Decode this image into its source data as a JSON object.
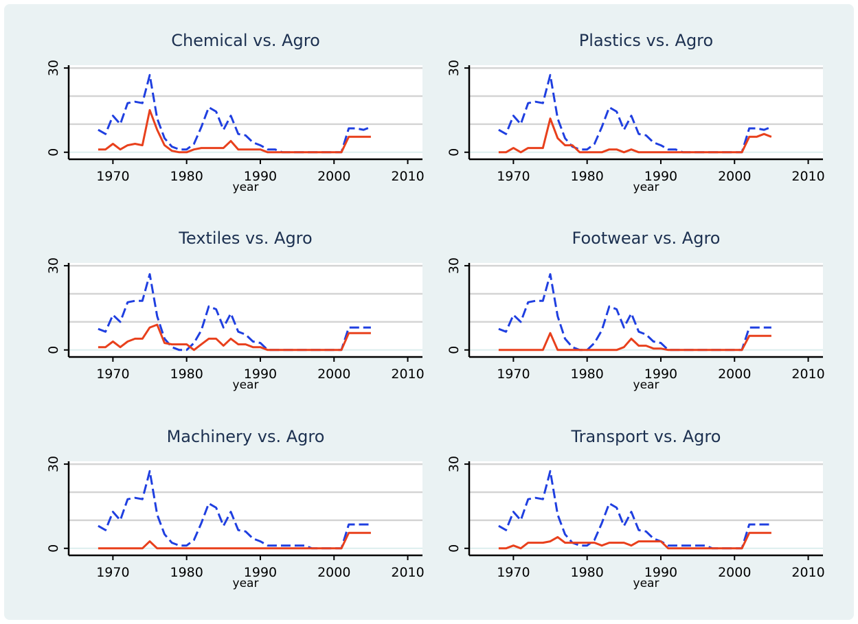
{
  "chart_data": [
    {
      "type": "line",
      "title": "Chemical vs. Agro",
      "xlabel": "year",
      "x": [
        1968,
        1969,
        1970,
        1971,
        1972,
        1973,
        1974,
        1975,
        1976,
        1977,
        1978,
        1979,
        1980,
        1981,
        1982,
        1983,
        1984,
        1985,
        1986,
        1987,
        1988,
        1989,
        1990,
        1991,
        1992,
        1993,
        1994,
        1995,
        1996,
        1997,
        1998,
        1999,
        2000,
        2001,
        2002,
        2003,
        2004,
        2005
      ],
      "series": [
        {
          "color": "#1f3fe0",
          "style": "dashed",
          "values": [
            8,
            6.5,
            13,
            10,
            17.5,
            18,
            17.5,
            27.5,
            12,
            5,
            2,
            1,
            1,
            3,
            9,
            16,
            14.5,
            8,
            13,
            6.5,
            6,
            3.5,
            2.5,
            1,
            1,
            0,
            0,
            0,
            0,
            0,
            0,
            0,
            0,
            0,
            8.5,
            8.5,
            8,
            9
          ]
        },
        {
          "color": "#e8401c",
          "style": "solid",
          "values": [
            1,
            1,
            3,
            1,
            2.5,
            3,
            2.5,
            15,
            8,
            2.5,
            0.5,
            0,
            0,
            1,
            1.5,
            1.5,
            1.5,
            1.5,
            4,
            1,
            1,
            1,
            1,
            0,
            0,
            0,
            0,
            0,
            0,
            0,
            0,
            0,
            0,
            0,
            5.5,
            5.5,
            5.5,
            5.5
          ]
        }
      ],
      "xlim": [
        1964,
        2012
      ],
      "xticks": [
        1970,
        1980,
        1990,
        2000,
        2010
      ],
      "ylim": [
        -2.5,
        31
      ],
      "yticks": [
        0,
        30
      ],
      "ygrid": [
        10,
        20,
        30
      ]
    },
    {
      "type": "line",
      "title": "Plastics vs. Agro",
      "xlabel": "year",
      "x": [
        1968,
        1969,
        1970,
        1971,
        1972,
        1973,
        1974,
        1975,
        1976,
        1977,
        1978,
        1979,
        1980,
        1981,
        1982,
        1983,
        1984,
        1985,
        1986,
        1987,
        1988,
        1989,
        1990,
        1991,
        1992,
        1993,
        1994,
        1995,
        1996,
        1997,
        1998,
        1999,
        2000,
        2001,
        2002,
        2003,
        2004,
        2005
      ],
      "series": [
        {
          "color": "#1f3fe0",
          "style": "dashed",
          "values": [
            8,
            6.5,
            13,
            10,
            17.5,
            18,
            17.5,
            27.5,
            12,
            5,
            2,
            1,
            1,
            3,
            9,
            16,
            14.5,
            8,
            13,
            6.5,
            6,
            3.5,
            2.5,
            1,
            1,
            0,
            0,
            0,
            0,
            0,
            0,
            0,
            0,
            0,
            8.5,
            8.5,
            8,
            9
          ]
        },
        {
          "color": "#e8401c",
          "style": "solid",
          "values": [
            0,
            0,
            1.5,
            0,
            1.5,
            1.5,
            1.5,
            12,
            5,
            2.5,
            2.5,
            0,
            0,
            0,
            0,
            1,
            1,
            0,
            1,
            0,
            0,
            0,
            0,
            0,
            0,
            0,
            0,
            0,
            0,
            0,
            0,
            0,
            0,
            0,
            5.5,
            5.5,
            6.5,
            5.5
          ]
        }
      ],
      "xlim": [
        1964,
        2012
      ],
      "xticks": [
        1970,
        1980,
        1990,
        2000,
        2010
      ],
      "ylim": [
        -2.5,
        31
      ],
      "yticks": [
        0,
        30
      ],
      "ygrid": [
        10,
        20,
        30
      ]
    },
    {
      "type": "line",
      "title": "Textiles vs. Agro",
      "xlabel": "year",
      "x": [
        1968,
        1969,
        1970,
        1971,
        1972,
        1973,
        1974,
        1975,
        1976,
        1977,
        1978,
        1979,
        1980,
        1981,
        1982,
        1983,
        1984,
        1985,
        1986,
        1987,
        1988,
        1989,
        1990,
        1991,
        1992,
        1993,
        1994,
        1995,
        1996,
        1997,
        1998,
        1999,
        2000,
        2001,
        2002,
        2003,
        2004,
        2005
      ],
      "series": [
        {
          "color": "#1f3fe0",
          "style": "dashed",
          "values": [
            7.5,
            6.5,
            12.5,
            10,
            17,
            17.5,
            17.5,
            27,
            12,
            4,
            1,
            0,
            0,
            2.5,
            7,
            15.5,
            14.5,
            8,
            13,
            6.5,
            5.5,
            3,
            2.5,
            0,
            0,
            0,
            0,
            0,
            0,
            0,
            0,
            0,
            0,
            0,
            8,
            8,
            8,
            8
          ]
        },
        {
          "color": "#e8401c",
          "style": "solid",
          "values": [
            1,
            1,
            3,
            1,
            3,
            4,
            4,
            8,
            9,
            2.5,
            2,
            2,
            2,
            0,
            2,
            4,
            4,
            1.5,
            4,
            2,
            2,
            1,
            1,
            0,
            0,
            0,
            0,
            0,
            0,
            0,
            0,
            0,
            0,
            0,
            6,
            6,
            6,
            6
          ]
        }
      ],
      "xlim": [
        1964,
        2012
      ],
      "xticks": [
        1970,
        1980,
        1990,
        2000,
        2010
      ],
      "ylim": [
        -2.5,
        31
      ],
      "yticks": [
        0,
        30
      ],
      "ygrid": [
        10,
        20,
        30
      ]
    },
    {
      "type": "line",
      "title": "Footwear vs. Agro",
      "xlabel": "year",
      "x": [
        1968,
        1969,
        1970,
        1971,
        1972,
        1973,
        1974,
        1975,
        1976,
        1977,
        1978,
        1979,
        1980,
        1981,
        1982,
        1983,
        1984,
        1985,
        1986,
        1987,
        1988,
        1989,
        1990,
        1991,
        1992,
        1993,
        1994,
        1995,
        1996,
        1997,
        1998,
        1999,
        2000,
        2001,
        2002,
        2003,
        2004,
        2005
      ],
      "series": [
        {
          "color": "#1f3fe0",
          "style": "dashed",
          "values": [
            7.5,
            6.5,
            12.5,
            10,
            17,
            17.5,
            17.5,
            27,
            12,
            4,
            1,
            0,
            0,
            2.5,
            7,
            15.5,
            14.5,
            8,
            13,
            6.5,
            5.5,
            3,
            2.5,
            0,
            0,
            0,
            0,
            0,
            0,
            0,
            0,
            0,
            0,
            0,
            8,
            8,
            8,
            8
          ]
        },
        {
          "color": "#e8401c",
          "style": "solid",
          "values": [
            0,
            0,
            0,
            0,
            0,
            0,
            0,
            6,
            0,
            0,
            0,
            0,
            0,
            0,
            0,
            0,
            0,
            1,
            4,
            1.5,
            1.5,
            0.5,
            0.5,
            0,
            0,
            0,
            0,
            0,
            0,
            0,
            0,
            0,
            0,
            0,
            5,
            5,
            5,
            5
          ]
        }
      ],
      "xlim": [
        1964,
        2012
      ],
      "xticks": [
        1970,
        1980,
        1990,
        2000,
        2010
      ],
      "ylim": [
        -2.5,
        31
      ],
      "yticks": [
        0,
        30
      ],
      "ygrid": [
        10,
        20,
        30
      ]
    },
    {
      "type": "line",
      "title": "Machinery vs. Agro",
      "xlabel": "year",
      "x": [
        1968,
        1969,
        1970,
        1971,
        1972,
        1973,
        1974,
        1975,
        1976,
        1977,
        1978,
        1979,
        1980,
        1981,
        1982,
        1983,
        1984,
        1985,
        1986,
        1987,
        1988,
        1989,
        1990,
        1991,
        1992,
        1993,
        1994,
        1995,
        1996,
        1997,
        1998,
        1999,
        2000,
        2001,
        2002,
        2003,
        2004,
        2005
      ],
      "series": [
        {
          "color": "#1f3fe0",
          "style": "dashed",
          "values": [
            8,
            6.5,
            13,
            10,
            17.5,
            18,
            17.5,
            27.5,
            12,
            5,
            2,
            1,
            1,
            3,
            9,
            16,
            14.5,
            8,
            13,
            6.5,
            6,
            3.5,
            2.5,
            1,
            1,
            1,
            1,
            1,
            1,
            0,
            0,
            0,
            0,
            0,
            8.5,
            8.5,
            8.5,
            8.5
          ]
        },
        {
          "color": "#e8401c",
          "style": "solid",
          "values": [
            0,
            0,
            0,
            0,
            0,
            0,
            0,
            2.5,
            0,
            0,
            0,
            0,
            0,
            0,
            0,
            0,
            0,
            0,
            0,
            0,
            0,
            0,
            0,
            0,
            0,
            0,
            0,
            0,
            0,
            0,
            0,
            0,
            0,
            0,
            5.5,
            5.5,
            5.5,
            5.5
          ]
        }
      ],
      "xlim": [
        1964,
        2012
      ],
      "xticks": [
        1970,
        1980,
        1990,
        2000,
        2010
      ],
      "ylim": [
        -2.5,
        31
      ],
      "yticks": [
        0,
        30
      ],
      "ygrid": [
        10,
        20,
        30
      ]
    },
    {
      "type": "line",
      "title": "Transport vs. Agro",
      "xlabel": "year",
      "x": [
        1968,
        1969,
        1970,
        1971,
        1972,
        1973,
        1974,
        1975,
        1976,
        1977,
        1978,
        1979,
        1980,
        1981,
        1982,
        1983,
        1984,
        1985,
        1986,
        1987,
        1988,
        1989,
        1990,
        1991,
        1992,
        1993,
        1994,
        1995,
        1996,
        1997,
        1998,
        1999,
        2000,
        2001,
        2002,
        2003,
        2004,
        2005
      ],
      "series": [
        {
          "color": "#1f3fe0",
          "style": "dashed",
          "values": [
            8,
            6.5,
            13,
            10,
            17.5,
            18,
            17.5,
            27.5,
            12,
            5,
            2,
            1,
            1,
            3,
            9,
            16,
            14.5,
            8,
            13,
            6.5,
            6,
            3.5,
            2.5,
            1,
            1,
            1,
            1,
            1,
            1,
            0,
            0,
            0,
            0,
            0,
            8.5,
            8.5,
            8.5,
            8.5
          ]
        },
        {
          "color": "#e8401c",
          "style": "solid",
          "values": [
            0,
            0,
            1,
            0,
            2,
            2,
            2,
            2.5,
            4,
            2,
            2,
            2,
            2,
            2,
            1,
            2,
            2,
            2,
            1,
            2.5,
            2.5,
            2.5,
            2.5,
            0,
            0,
            0,
            0,
            0,
            0,
            0,
            0,
            0,
            0,
            0,
            5.5,
            5.5,
            5.5,
            5.5
          ]
        }
      ],
      "xlim": [
        1964,
        2012
      ],
      "xticks": [
        1970,
        1980,
        1990,
        2000,
        2010
      ],
      "ylim": [
        -2.5,
        31
      ],
      "yticks": [
        0,
        30
      ],
      "ygrid": [
        10,
        20,
        30
      ]
    }
  ]
}
